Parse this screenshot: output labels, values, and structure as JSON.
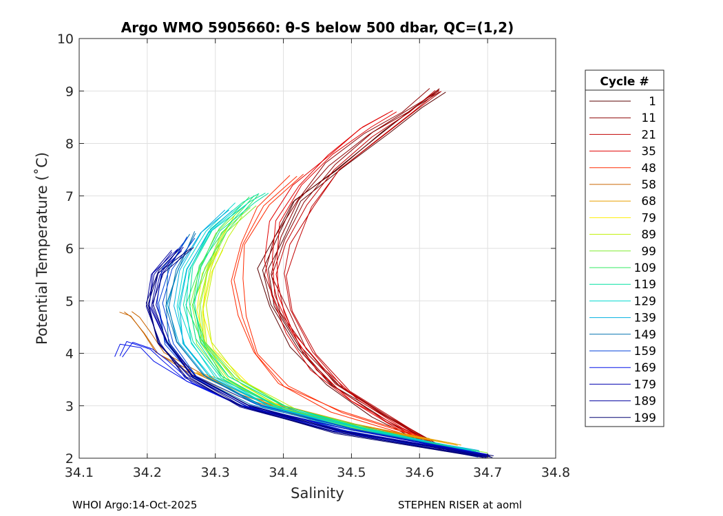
{
  "chart_data": {
    "type": "line",
    "title": "Argo WMO 5905660: θ-S below 500 dbar,  QC=(1,2)",
    "xlabel": "Salinity",
    "ylabel": "Potential Temperature (˚C)",
    "xlim": [
      34.1,
      34.8
    ],
    "ylim": [
      2,
      10
    ],
    "xticks": [
      34.1,
      34.2,
      34.3,
      34.4,
      34.5,
      34.6,
      34.7,
      34.8
    ],
    "yticks": [
      2,
      3,
      4,
      5,
      6,
      7,
      8,
      9,
      10
    ],
    "grid": true,
    "legend": {
      "title": "Cycle #",
      "placement": "outside-right",
      "entries": [
        {
          "label": "1",
          "color": "#5a0000"
        },
        {
          "label": "11",
          "color": "#8c0000"
        },
        {
          "label": "21",
          "color": "#c00000"
        },
        {
          "label": "35",
          "color": "#e00000"
        },
        {
          "label": "48",
          "color": "#ff2a00"
        },
        {
          "label": "58",
          "color": "#c86400"
        },
        {
          "label": "68",
          "color": "#e8a000"
        },
        {
          "label": "79",
          "color": "#ffee00"
        },
        {
          "label": "89",
          "color": "#bff000"
        },
        {
          "label": "99",
          "color": "#80ee30"
        },
        {
          "label": "109",
          "color": "#30e860"
        },
        {
          "label": "119",
          "color": "#00e0a0"
        },
        {
          "label": "129",
          "color": "#00d8d0"
        },
        {
          "label": "139",
          "color": "#00b0e0"
        },
        {
          "label": "149",
          "color": "#0070b0"
        },
        {
          "label": "159",
          "color": "#0040d8"
        },
        {
          "label": "169",
          "color": "#0010e8"
        },
        {
          "label": "179",
          "color": "#0000b0"
        },
        {
          "label": "189",
          "color": "#0000a0"
        },
        {
          "label": "199",
          "color": "#000070"
        }
      ]
    },
    "series": [
      {
        "name": "1",
        "color": "#5a0000",
        "x": [
          34.61,
          34.54,
          34.47,
          34.42,
          34.385,
          34.37,
          34.39,
          34.42,
          34.48,
          34.55,
          34.6,
          34.63
        ],
        "y": [
          2.3,
          2.8,
          3.4,
          4.1,
          4.9,
          5.6,
          6.2,
          6.9,
          7.5,
          8.2,
          8.7,
          9.0
        ]
      },
      {
        "name": "11",
        "color": "#8c0000",
        "x": [
          34.62,
          34.55,
          34.48,
          34.43,
          34.4,
          34.38,
          34.395,
          34.425,
          34.47,
          34.53,
          34.58,
          34.625
        ],
        "y": [
          2.3,
          2.8,
          3.4,
          4.1,
          4.8,
          5.5,
          6.2,
          6.9,
          7.6,
          8.2,
          8.6,
          9.02
        ]
      },
      {
        "name": "21",
        "color": "#c00000",
        "x": [
          34.63,
          34.56,
          34.49,
          34.44,
          34.41,
          34.4,
          34.41,
          34.44,
          34.48,
          34.54,
          34.59,
          34.625
        ],
        "y": [
          2.2,
          2.7,
          3.3,
          4.0,
          4.8,
          5.5,
          6.1,
          6.8,
          7.5,
          8.1,
          8.6,
          9.0
        ]
      },
      {
        "name": "35",
        "color": "#e00000",
        "x": [
          34.64,
          34.57,
          34.5,
          34.45,
          34.41,
          34.39,
          34.38,
          34.39,
          34.42,
          34.47,
          34.52,
          34.56
        ],
        "y": [
          2.15,
          2.6,
          3.1,
          3.7,
          4.4,
          5.1,
          5.8,
          6.5,
          7.2,
          7.8,
          8.3,
          8.6
        ]
      },
      {
        "name": "48",
        "color": "#ff2a00",
        "x": [
          34.6,
          34.48,
          34.4,
          34.36,
          34.34,
          34.33,
          34.34,
          34.37,
          34.42
        ],
        "y": [
          2.4,
          2.9,
          3.4,
          4.0,
          4.7,
          5.4,
          6.1,
          6.8,
          7.4
        ]
      },
      {
        "name": "58",
        "color": "#c86400",
        "x": [
          34.62,
          34.45,
          34.34,
          34.27,
          34.22,
          34.2,
          34.18,
          34.17
        ],
        "y": [
          2.35,
          2.75,
          3.2,
          3.6,
          4.0,
          4.4,
          4.7,
          4.8
        ]
      },
      {
        "name": "68",
        "color": "#e8a000",
        "x": [
          34.66,
          34.5,
          34.38,
          34.3,
          34.27
        ],
        "y": [
          2.25,
          2.65,
          3.05,
          3.5,
          3.65
        ]
      },
      {
        "name": "79",
        "color": "#ffee00",
        "x": [
          34.7,
          34.55,
          34.42,
          34.34,
          34.29,
          34.28,
          34.29,
          34.31
        ],
        "y": [
          2.05,
          2.45,
          2.85,
          3.4,
          4.1,
          4.8,
          5.5,
          6.0
        ]
      },
      {
        "name": "89",
        "color": "#bff000",
        "x": [
          34.69,
          34.54,
          34.41,
          34.33,
          34.29,
          34.28,
          34.29,
          34.31,
          34.33
        ],
        "y": [
          2.08,
          2.5,
          2.9,
          3.5,
          4.2,
          4.9,
          5.6,
          6.2,
          6.6
        ]
      },
      {
        "name": "99",
        "color": "#80ee30",
        "x": [
          34.69,
          34.53,
          34.4,
          34.32,
          34.28,
          34.27,
          34.285,
          34.31,
          34.35
        ],
        "y": [
          2.1,
          2.5,
          2.95,
          3.5,
          4.2,
          4.9,
          5.6,
          6.3,
          6.8
        ]
      },
      {
        "name": "109",
        "color": "#30e860",
        "x": [
          34.69,
          34.53,
          34.4,
          34.32,
          34.28,
          34.265,
          34.28,
          34.31,
          34.36
        ],
        "y": [
          2.1,
          2.52,
          2.97,
          3.55,
          4.25,
          4.95,
          5.65,
          6.35,
          7.0
        ]
      },
      {
        "name": "119",
        "color": "#00e0a0",
        "x": [
          34.68,
          34.52,
          34.39,
          34.31,
          34.27,
          34.26,
          34.27,
          34.3,
          34.35,
          34.37
        ],
        "y": [
          2.12,
          2.55,
          3.0,
          3.55,
          4.25,
          4.95,
          5.65,
          6.35,
          6.9,
          7.05
        ]
      },
      {
        "name": "129",
        "color": "#00d8d0",
        "x": [
          34.68,
          34.52,
          34.38,
          34.3,
          34.26,
          34.25,
          34.26,
          34.29,
          34.34
        ],
        "y": [
          2.12,
          2.55,
          3.0,
          3.55,
          4.2,
          4.9,
          5.6,
          6.3,
          6.85
        ]
      },
      {
        "name": "139",
        "color": "#00b0e0",
        "x": [
          34.68,
          34.5,
          34.37,
          34.29,
          34.25,
          34.24,
          34.25,
          34.28,
          34.32
        ],
        "y": [
          2.12,
          2.55,
          3.0,
          3.55,
          4.2,
          4.9,
          5.6,
          6.3,
          6.75
        ]
      },
      {
        "name": "149",
        "color": "#0070b0",
        "x": [
          34.69,
          34.5,
          34.36,
          34.28,
          34.24,
          34.23,
          34.24,
          34.27
        ],
        "y": [
          2.08,
          2.55,
          3.0,
          3.55,
          4.2,
          4.9,
          5.6,
          6.3
        ]
      },
      {
        "name": "159",
        "color": "#0040d8",
        "x": [
          34.69,
          34.49,
          34.35,
          34.27,
          34.23,
          34.22,
          34.23,
          34.26
        ],
        "y": [
          2.05,
          2.55,
          3.0,
          3.55,
          4.2,
          4.95,
          5.6,
          6.2
        ]
      },
      {
        "name": "169",
        "color": "#0010e8",
        "x": [
          34.7,
          34.48,
          34.34,
          34.26,
          34.22,
          34.2,
          34.17,
          34.155
        ],
        "y": [
          2.05,
          2.55,
          3.0,
          3.45,
          3.85,
          4.1,
          4.2,
          3.95
        ]
      },
      {
        "name": "179",
        "color": "#0000b0",
        "x": [
          34.7,
          34.49,
          34.35,
          34.27,
          34.23,
          34.21,
          34.215,
          34.25
        ],
        "y": [
          2.05,
          2.55,
          3.0,
          3.55,
          4.2,
          4.9,
          5.5,
          6.0
        ]
      },
      {
        "name": "189",
        "color": "#0000a0",
        "x": [
          34.7,
          34.48,
          34.34,
          34.26,
          34.22,
          34.2,
          34.21,
          34.24
        ],
        "y": [
          2.02,
          2.52,
          3.0,
          3.55,
          4.2,
          4.9,
          5.5,
          5.95
        ]
      },
      {
        "name": "199",
        "color": "#000070",
        "x": [
          34.7,
          34.48,
          34.34,
          34.26,
          34.22,
          34.205,
          34.22,
          34.26
        ],
        "y": [
          2.0,
          2.5,
          3.0,
          3.55,
          4.2,
          4.95,
          5.55,
          6.0
        ]
      }
    ]
  },
  "footer": {
    "left": "WHOI Argo:14-Oct-2025",
    "right": "STEPHEN RISER at aoml"
  }
}
